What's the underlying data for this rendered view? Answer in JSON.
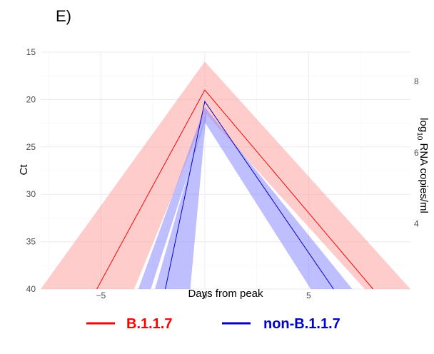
{
  "panel_label": "E)",
  "chart_data": {
    "type": "line",
    "xlabel": "Days from peak",
    "ylabel": "Ct",
    "y2label_base": "log",
    "y2label_sub": "10",
    "y2label_rest": " RNA copies/ml",
    "xlim": [
      -7.9,
      9.9
    ],
    "ylim": [
      40,
      15
    ],
    "y_reversed": true,
    "grid": true,
    "xticks": [
      {
        "value": -5,
        "label": "−5"
      },
      {
        "value": 0,
        "label": "0"
      },
      {
        "value": 5,
        "label": "5"
      }
    ],
    "yticks": [
      {
        "value": 15,
        "label": "15"
      },
      {
        "value": 20,
        "label": "20"
      },
      {
        "value": 25,
        "label": "25"
      },
      {
        "value": 30,
        "label": "30"
      },
      {
        "value": 35,
        "label": "35"
      },
      {
        "value": 40,
        "label": "40"
      }
    ],
    "y2ticks": [
      {
        "ct": 18.1,
        "label": "8"
      },
      {
        "ct": 25.6,
        "label": "6"
      },
      {
        "ct": 33.1,
        "label": "4"
      }
    ],
    "series": [
      {
        "name": "B.1.1.7",
        "color": "#ff0000",
        "band_color": "#ff9999",
        "line": {
          "x": [
            -5.2,
            0,
            8.1
          ],
          "y": [
            40,
            19.0,
            40
          ]
        },
        "bands": [
          {
            "x": [
              -7.9,
              0,
              9.9,
              7.7,
              0.05,
              -3.4
            ],
            "y": [
              40,
              16.0,
              40,
              40,
              21.5,
              40
            ]
          }
        ]
      },
      {
        "name": "non-B.1.1.7",
        "color": "#0000cc",
        "band_color": "#8080ff",
        "line": {
          "x": [
            -1.9,
            0,
            6.2
          ],
          "y": [
            40,
            20.2,
            40
          ]
        },
        "bands": [
          {
            "x": [
              -3.2,
              0,
              7.1,
              5.1,
              0,
              -2.6
            ],
            "y": [
              40,
              20.8,
              40,
              40,
              22.4,
              40
            ]
          },
          {
            "x": [
              -2.4,
              0.1,
              -0.7
            ],
            "y": [
              40,
              21.0,
              40
            ]
          }
        ]
      }
    ],
    "legend": {
      "position": "bottom"
    }
  }
}
